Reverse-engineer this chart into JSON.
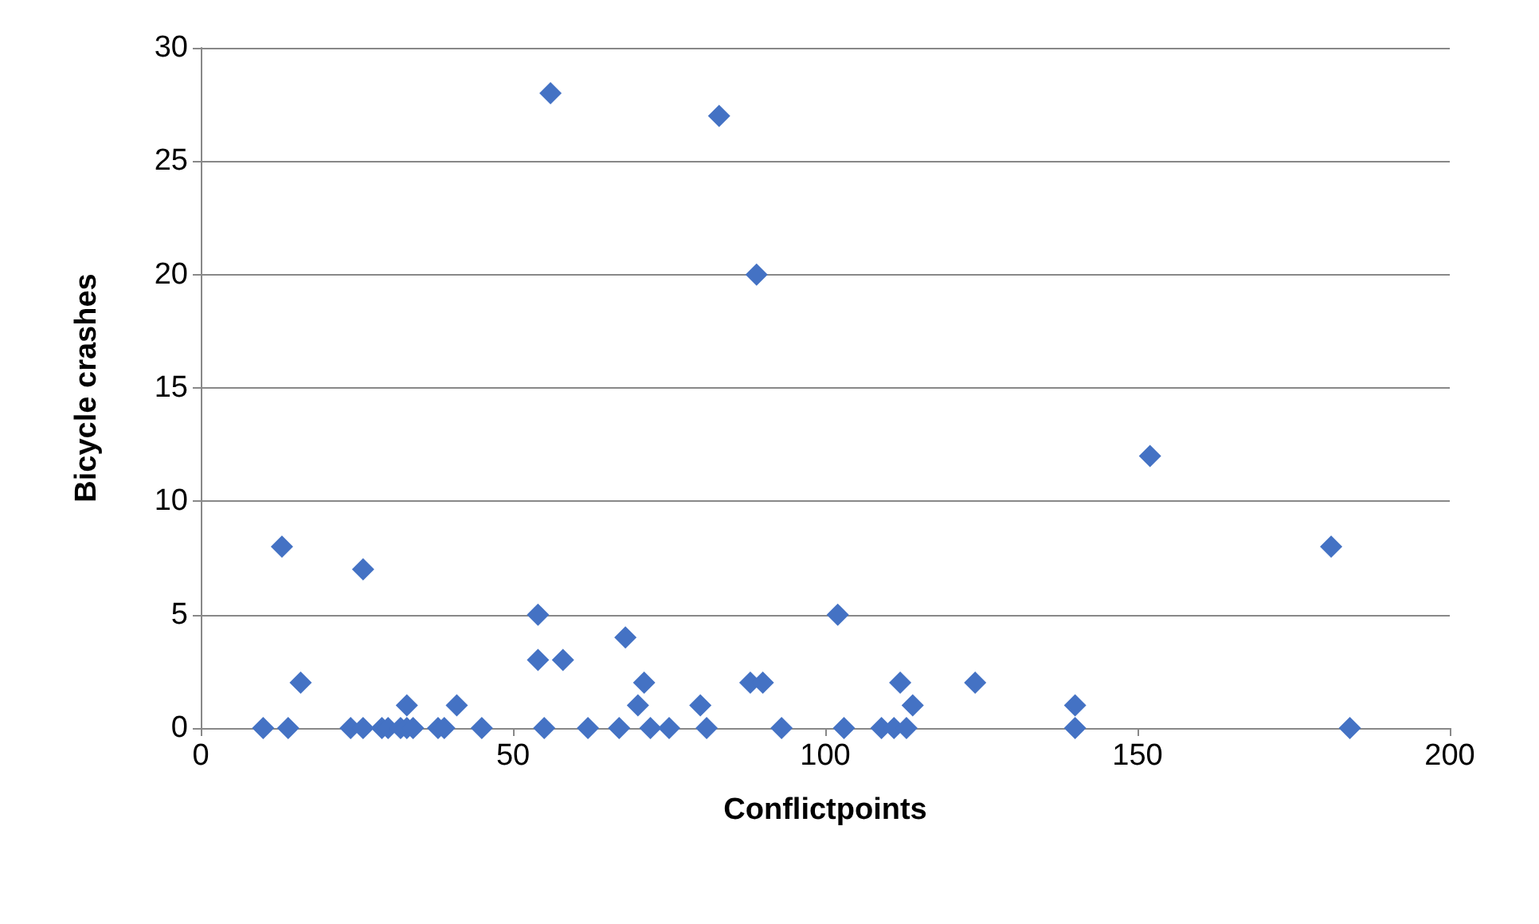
{
  "chart_data": {
    "type": "scatter",
    "xlabel": "Conflictpoints",
    "ylabel": "Bicycle crashes",
    "x": [
      10,
      14,
      24,
      26,
      29,
      30,
      32,
      33,
      34,
      38,
      39,
      45,
      55,
      62,
      67,
      72,
      75,
      81,
      93,
      103,
      109,
      111,
      113,
      140,
      184,
      13,
      16,
      26,
      33,
      41,
      54,
      54,
      58,
      68,
      71,
      70,
      80,
      114,
      140,
      88,
      90,
      112,
      124,
      102,
      181,
      56,
      83,
      89,
      152
    ],
    "series": [
      {
        "color": "#4472c4",
        "values": [
          0,
          0,
          0,
          0,
          0,
          0,
          0,
          0,
          0,
          0,
          0,
          0,
          0,
          0,
          0,
          0,
          0,
          0,
          0,
          0,
          0,
          0,
          0,
          0,
          0,
          8,
          2,
          7,
          1,
          1,
          5,
          3,
          3,
          4,
          2,
          1,
          1,
          1,
          1,
          2,
          2,
          2,
          2,
          5,
          8,
          28,
          27,
          20,
          12
        ]
      }
    ],
    "xlim": [
      0,
      200
    ],
    "xticks": [
      0,
      50,
      100,
      150,
      200
    ],
    "ylim": [
      0,
      30
    ],
    "yticks": [
      0,
      5,
      10,
      15,
      20,
      25,
      30
    ],
    "grid": "y",
    "marker": "diamond"
  }
}
